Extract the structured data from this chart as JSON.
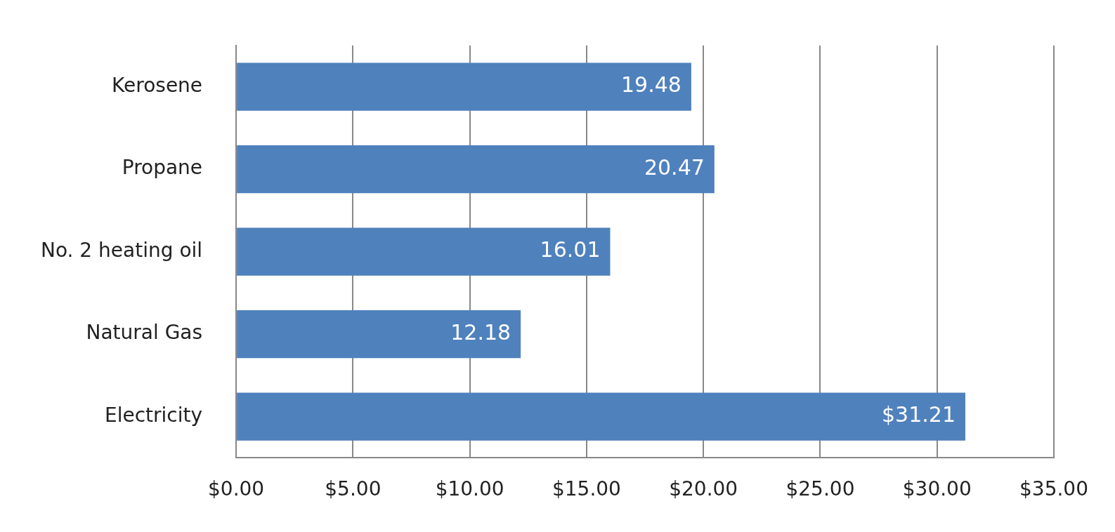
{
  "chart_data": {
    "type": "bar",
    "orientation": "horizontal",
    "categories": [
      "Kerosene",
      "Propane",
      "No. 2 heating oil",
      "Natural Gas",
      "Electricity"
    ],
    "values": [
      19.48,
      20.47,
      16.01,
      12.18,
      31.21
    ],
    "value_labels": [
      "19.48",
      "20.47",
      "16.01",
      "12.18",
      "$31.21"
    ],
    "color": "#4f81bd",
    "xlim": [
      0,
      35
    ],
    "xticks": [
      {
        "value": 0,
        "label": "$0.00"
      },
      {
        "value": 5,
        "label": "$5.00"
      },
      {
        "value": 10,
        "label": "$10.00"
      },
      {
        "value": 15,
        "label": "$15.00"
      },
      {
        "value": 20,
        "label": "$20.00"
      },
      {
        "value": 25,
        "label": "$25.00"
      },
      {
        "value": 30,
        "label": "$30.00"
      },
      {
        "value": 35,
        "label": "$35.00"
      }
    ],
    "grid": "x"
  }
}
